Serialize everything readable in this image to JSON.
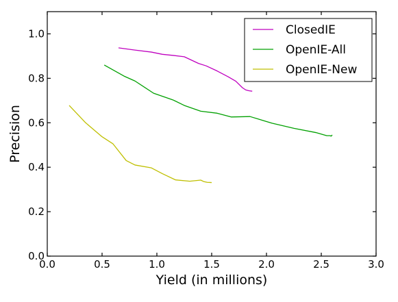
{
  "chart_data": {
    "type": "line",
    "xlabel": "Yield (in millions)",
    "ylabel": "Precision",
    "xlim": [
      0.0,
      3.0
    ],
    "ylim": [
      0.0,
      1.1
    ],
    "xticks": [
      "0.0",
      "0.5",
      "1.0",
      "1.5",
      "2.0",
      "2.5",
      "3.0"
    ],
    "yticks": [
      "0.0",
      "0.2",
      "0.4",
      "0.6",
      "0.8",
      "1.0"
    ],
    "legend_position": "top-right",
    "grid": false,
    "series": [
      {
        "name": "ClosedIE",
        "color": "#bf00bf",
        "points": [
          [
            0.65,
            0.937
          ],
          [
            0.8,
            0.927
          ],
          [
            0.95,
            0.918
          ],
          [
            1.05,
            0.908
          ],
          [
            1.15,
            0.903
          ],
          [
            1.25,
            0.897
          ],
          [
            1.38,
            0.867
          ],
          [
            1.45,
            0.856
          ],
          [
            1.55,
            0.833
          ],
          [
            1.65,
            0.807
          ],
          [
            1.72,
            0.787
          ],
          [
            1.78,
            0.758
          ],
          [
            1.81,
            0.748
          ],
          [
            1.84,
            0.744
          ],
          [
            1.87,
            0.742
          ]
        ]
      },
      {
        "name": "OpenIE-All",
        "color": "#00a000",
        "points": [
          [
            0.52,
            0.86
          ],
          [
            0.7,
            0.81
          ],
          [
            0.8,
            0.788
          ],
          [
            0.97,
            0.733
          ],
          [
            1.15,
            0.702
          ],
          [
            1.25,
            0.678
          ],
          [
            1.4,
            0.652
          ],
          [
            1.55,
            0.643
          ],
          [
            1.68,
            0.626
          ],
          [
            1.85,
            0.628
          ],
          [
            2.05,
            0.598
          ],
          [
            2.25,
            0.575
          ],
          [
            2.45,
            0.556
          ],
          [
            2.52,
            0.546
          ],
          [
            2.55,
            0.542
          ],
          [
            2.58,
            0.542
          ],
          [
            2.59,
            0.54
          ],
          [
            2.6,
            0.545
          ]
        ]
      },
      {
        "name": "OpenIE-New",
        "color": "#bfbf00",
        "points": [
          [
            0.2,
            0.678
          ],
          [
            0.35,
            0.6
          ],
          [
            0.5,
            0.537
          ],
          [
            0.6,
            0.505
          ],
          [
            0.72,
            0.43
          ],
          [
            0.8,
            0.41
          ],
          [
            0.95,
            0.397
          ],
          [
            1.05,
            0.371
          ],
          [
            1.17,
            0.343
          ],
          [
            1.3,
            0.337
          ],
          [
            1.4,
            0.342
          ],
          [
            1.43,
            0.335
          ],
          [
            1.46,
            0.332
          ],
          [
            1.5,
            0.331
          ]
        ]
      }
    ]
  }
}
